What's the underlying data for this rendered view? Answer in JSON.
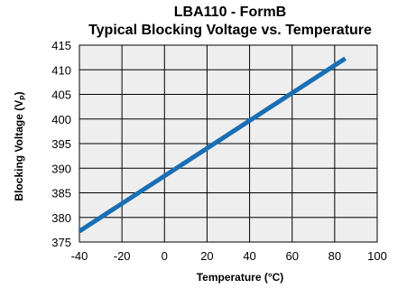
{
  "chart_data": {
    "type": "line",
    "title": "LBA110 - FormB",
    "subtitle": "Typical Blocking Voltage vs. Temperature",
    "xlabel": "Temperature (°C)",
    "ylabel_main": "Blocking Voltage (V",
    "ylabel_sub": "P",
    "ylabel_close": ")",
    "xlim": [
      -40,
      100
    ],
    "ylim": [
      375,
      415
    ],
    "xticks": [
      -40,
      -20,
      0,
      20,
      40,
      60,
      80,
      100
    ],
    "yticks": [
      375,
      380,
      385,
      390,
      395,
      400,
      405,
      410,
      415
    ],
    "grid": true,
    "series": [
      {
        "x": [
          -40,
          85
        ],
        "y": [
          377.2,
          412.3
        ]
      }
    ],
    "colors": {
      "line": "#1a6fb4",
      "grid": "#000000",
      "plot_bg": "#eeeeee"
    }
  }
}
